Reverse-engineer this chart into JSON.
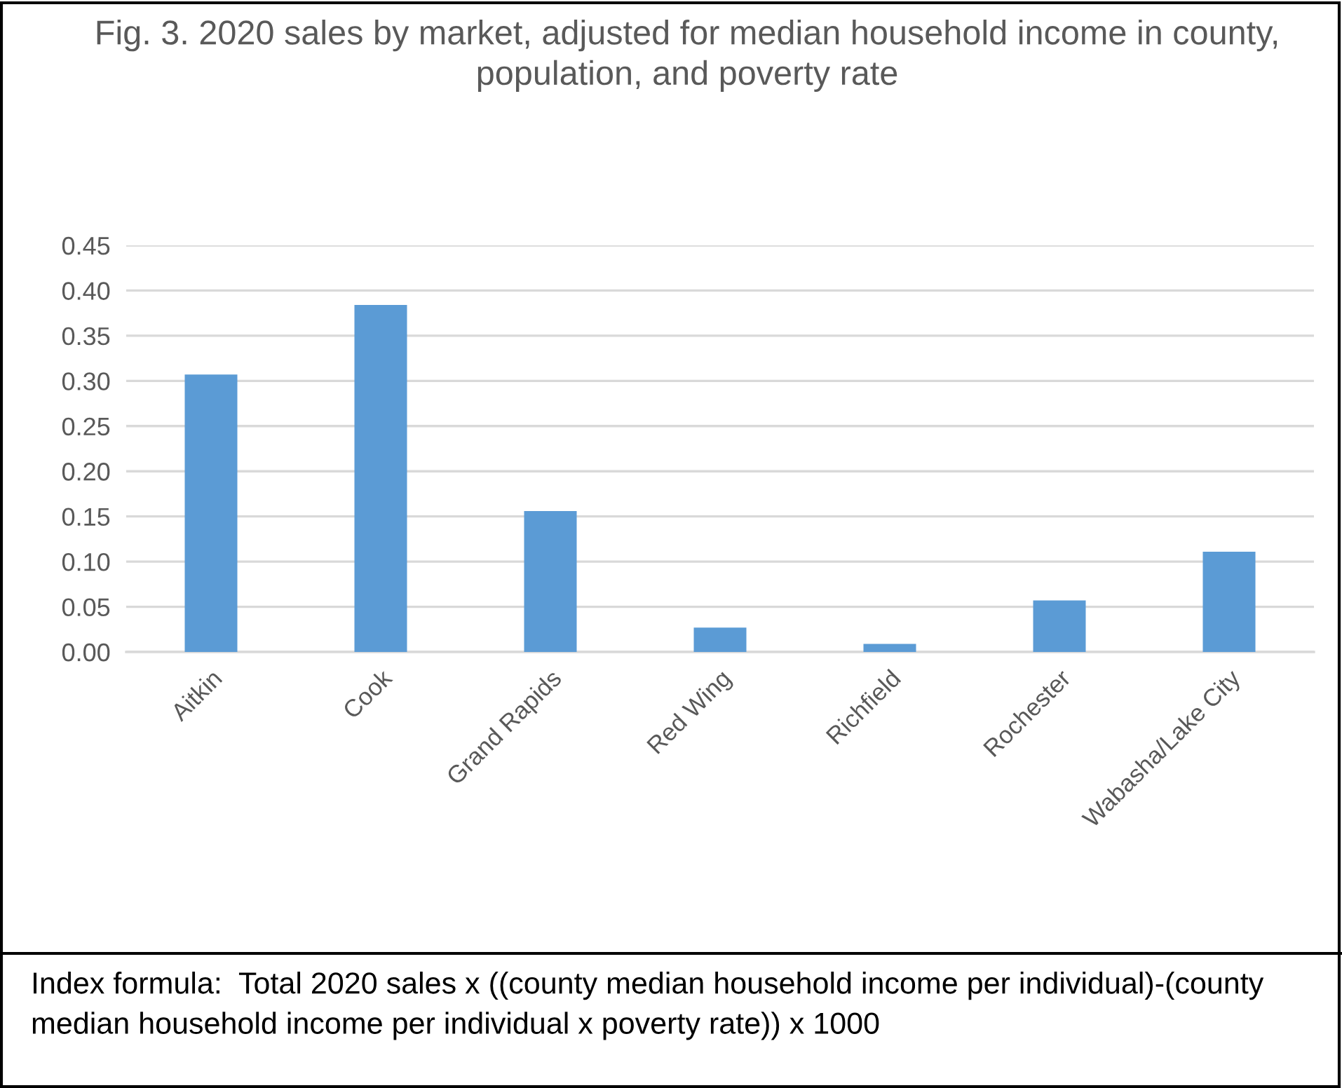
{
  "chart_data": {
    "type": "bar",
    "title": "Fig. 3. 2020 sales by market, adjusted for median household income in county, population, and poverty rate",
    "categories": [
      "Aitkin",
      "Cook",
      "Grand Rapids",
      "Red Wing",
      "Richfield",
      "Rochester",
      "Wabasha/Lake City"
    ],
    "values": [
      0.307,
      0.384,
      0.156,
      0.027,
      0.009,
      0.057,
      0.111
    ],
    "color": "#5b9bd5",
    "ylim": [
      0,
      0.45
    ],
    "yticks": [
      {
        "value": 0,
        "label": "0.00"
      },
      {
        "value": 0.05,
        "label": "0.05"
      },
      {
        "value": 0.1,
        "label": "0.10"
      },
      {
        "value": 0.15,
        "label": "0.15"
      },
      {
        "value": 0.2,
        "label": "0.20"
      },
      {
        "value": 0.25,
        "label": "0.25"
      },
      {
        "value": 0.3,
        "label": "0.30"
      },
      {
        "value": 0.35,
        "label": "0.35"
      },
      {
        "value": 0.4,
        "label": "0.40"
      },
      {
        "value": 0.45,
        "label": "0.45"
      }
    ],
    "grid": "y",
    "annotations": [
      "Index formula:  Total 2020 sales x ((county median household income per individual)-(county median household income per individual x poverty rate)) x 1000"
    ]
  }
}
